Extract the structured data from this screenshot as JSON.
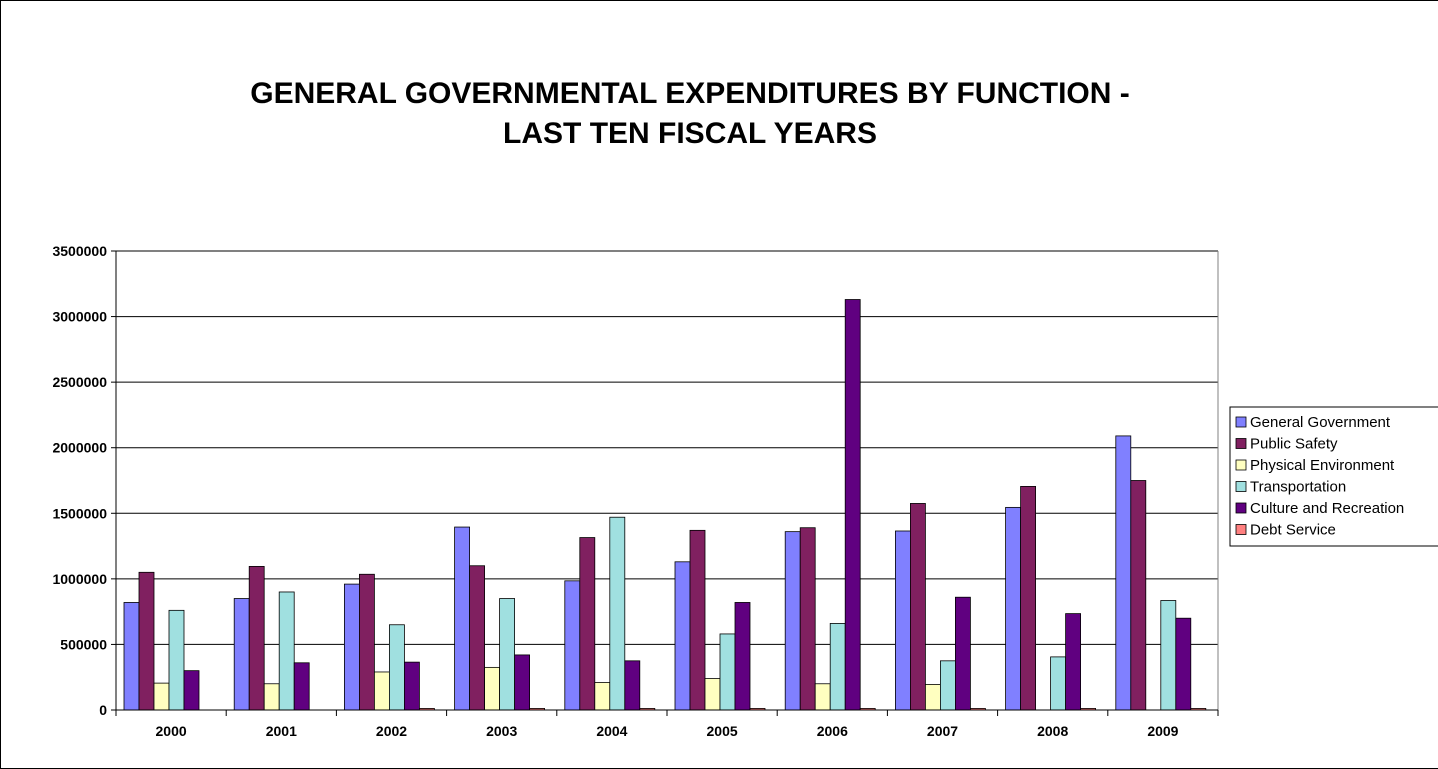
{
  "chart_data": {
    "type": "bar",
    "title_line1": "GENERAL GOVERNMENTAL EXPENDITURES BY FUNCTION -",
    "title_line2": "LAST TEN FISCAL YEARS",
    "categories": [
      "2000",
      "2001",
      "2002",
      "2003",
      "2004",
      "2005",
      "2006",
      "2007",
      "2008",
      "2009"
    ],
    "ylim": [
      0,
      3500000
    ],
    "yticks": [
      0,
      500000,
      1000000,
      1500000,
      2000000,
      2500000,
      3000000,
      3500000
    ],
    "grid": true,
    "legend_position": "right",
    "series": [
      {
        "name": "General Government",
        "color": "#8080ff",
        "values": [
          820000,
          850000,
          960000,
          1395000,
          985000,
          1130000,
          1360000,
          1365000,
          1545000,
          2090000
        ]
      },
      {
        "name": "Public Safety",
        "color": "#802060",
        "values": [
          1050000,
          1095000,
          1035000,
          1100000,
          1315000,
          1370000,
          1390000,
          1575000,
          1705000,
          1750000
        ]
      },
      {
        "name": "Physical Environment",
        "color": "#ffffc0",
        "values": [
          205000,
          200000,
          290000,
          325000,
          210000,
          240000,
          200000,
          195000,
          0,
          0
        ]
      },
      {
        "name": "Transportation",
        "color": "#a0e0e0",
        "values": [
          760000,
          900000,
          650000,
          850000,
          1470000,
          580000,
          660000,
          375000,
          405000,
          835000
        ]
      },
      {
        "name": "Culture and Recreation",
        "color": "#600080",
        "values": [
          300000,
          360000,
          365000,
          420000,
          375000,
          820000,
          3130000,
          860000,
          735000,
          700000
        ]
      },
      {
        "name": "Debt Service",
        "color": "#ff8080",
        "values": [
          0,
          0,
          12000,
          12000,
          12000,
          12000,
          12000,
          12000,
          12000,
          12000
        ]
      }
    ]
  }
}
